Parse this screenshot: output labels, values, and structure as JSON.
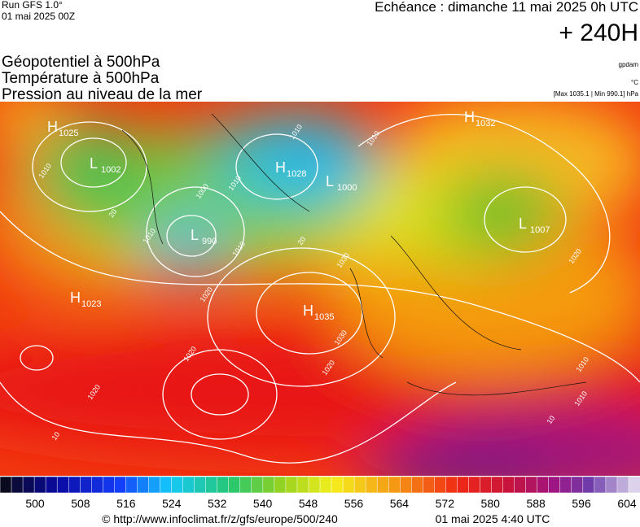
{
  "header": {
    "run": "Run GFS 1.0°",
    "date": "01 mai 2025 00Z",
    "echeance": "Echéance : dimanche 11 mai 2025 0h UTC",
    "lead": "+ 240H",
    "fields": [
      "Géopotentiel à 500hPa",
      "Température à 500hPa",
      "Pression au niveau de la mer"
    ],
    "units": [
      "gpdam",
      "°C"
    ],
    "range": "[Max 1035.1 | Min 990.1] hPa"
  },
  "centers": [
    {
      "letter": "H",
      "value": "1025"
    },
    {
      "letter": "L",
      "value": "1002"
    },
    {
      "letter": "H",
      "value": "1028"
    },
    {
      "letter": "L",
      "value": "1000"
    },
    {
      "letter": "L",
      "value": "990"
    },
    {
      "letter": "H",
      "value": "1023"
    },
    {
      "letter": "H",
      "value": "1035"
    },
    {
      "letter": "H",
      "value": "1032"
    },
    {
      "letter": "L",
      "value": "1007"
    }
  ],
  "contour_labels": [
    "1010",
    "1010",
    "1010",
    "1000",
    "1010",
    "1010",
    "1020",
    "1030",
    "1030",
    "1020",
    "1020",
    "1020",
    "1020",
    "1010",
    "1010",
    "1010",
    "20",
    "20",
    "10",
    "10"
  ],
  "colorbar": {
    "labels": [
      500,
      508,
      516,
      524,
      532,
      540,
      548,
      556,
      564,
      572,
      580,
      588,
      596,
      604
    ]
  },
  "footer": {
    "url": "© http://www.infoclimat.fr/z/gfs/europe/500/240",
    "time": "01 mai 2025  4:40 UTC"
  }
}
